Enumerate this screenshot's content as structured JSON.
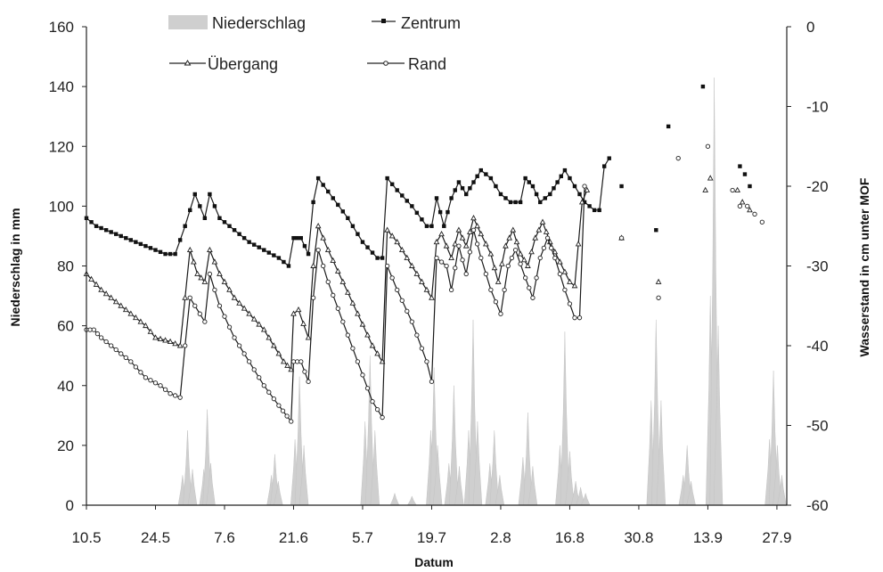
{
  "chart_data": {
    "type": "line",
    "xlabel": "Datum",
    "ylabel_left": "Niederschlag in mm",
    "ylabel_right": "Wasserstand in cm unter MOF",
    "x_range_days": [
      0,
      142
    ],
    "x_ticks": [
      {
        "day": 0,
        "label": "10.5"
      },
      {
        "day": 14,
        "label": "24.5"
      },
      {
        "day": 28,
        "label": "7.6"
      },
      {
        "day": 42,
        "label": "21.6"
      },
      {
        "day": 56,
        "label": "5.7"
      },
      {
        "day": 70,
        "label": "19.7"
      },
      {
        "day": 84,
        "label": "2.8"
      },
      {
        "day": 98,
        "label": "16.8"
      },
      {
        "day": 112,
        "label": "30.8"
      },
      {
        "day": 126,
        "label": "13.9"
      },
      {
        "day": 140,
        "label": "27.9"
      }
    ],
    "ylim_left": [
      0,
      160
    ],
    "yticks_left": [
      "0",
      "20",
      "40",
      "60",
      "80",
      "100",
      "120",
      "140",
      "160"
    ],
    "ylim_right": [
      -60,
      0
    ],
    "yticks_right": [
      "-60",
      "-50",
      "-40",
      "-30",
      "-20",
      "-10",
      "0"
    ],
    "legend": {
      "niederschlag": "Niederschlag",
      "zentrum": "Zentrum",
      "uebergang": "Übergang",
      "rand": "Rand"
    },
    "precipitation": [
      {
        "day": 19.5,
        "value": 10
      },
      {
        "day": 20.5,
        "value": 25
      },
      {
        "day": 21.5,
        "value": 12
      },
      {
        "day": 23.8,
        "value": 12
      },
      {
        "day": 24.5,
        "value": 32
      },
      {
        "day": 25.2,
        "value": 14
      },
      {
        "day": 37.5,
        "value": 10
      },
      {
        "day": 38.2,
        "value": 17
      },
      {
        "day": 38.9,
        "value": 8
      },
      {
        "day": 42.3,
        "value": 22
      },
      {
        "day": 43.2,
        "value": 43
      },
      {
        "day": 44.1,
        "value": 20
      },
      {
        "day": 56.5,
        "value": 28
      },
      {
        "day": 57.5,
        "value": 50
      },
      {
        "day": 58.5,
        "value": 25
      },
      {
        "day": 62.5,
        "value": 4
      },
      {
        "day": 66.0,
        "value": 3
      },
      {
        "day": 69.8,
        "value": 25
      },
      {
        "day": 70.5,
        "value": 46
      },
      {
        "day": 71.2,
        "value": 20
      },
      {
        "day": 73.5,
        "value": 14
      },
      {
        "day": 74.5,
        "value": 40
      },
      {
        "day": 75.6,
        "value": 13
      },
      {
        "day": 77.5,
        "value": 25
      },
      {
        "day": 78.4,
        "value": 62
      },
      {
        "day": 79.3,
        "value": 28
      },
      {
        "day": 81.8,
        "value": 14
      },
      {
        "day": 82.7,
        "value": 25
      },
      {
        "day": 83.8,
        "value": 10
      },
      {
        "day": 88.5,
        "value": 16
      },
      {
        "day": 89.5,
        "value": 31
      },
      {
        "day": 90.5,
        "value": 13
      },
      {
        "day": 96.0,
        "value": 20
      },
      {
        "day": 97.0,
        "value": 58
      },
      {
        "day": 98.0,
        "value": 18
      },
      {
        "day": 99.2,
        "value": 8
      },
      {
        "day": 100.2,
        "value": 6
      },
      {
        "day": 101.2,
        "value": 4
      },
      {
        "day": 114.5,
        "value": 35
      },
      {
        "day": 115.5,
        "value": 62
      },
      {
        "day": 116.5,
        "value": 35
      },
      {
        "day": 121.0,
        "value": 10
      },
      {
        "day": 121.8,
        "value": 20
      },
      {
        "day": 122.6,
        "value": 8
      },
      {
        "day": 126.5,
        "value": 70
      },
      {
        "day": 127.3,
        "value": 143
      },
      {
        "day": 128.1,
        "value": 60
      },
      {
        "day": 138.5,
        "value": 22
      },
      {
        "day": 139.3,
        "value": 45
      },
      {
        "day": 140.1,
        "value": 20
      },
      {
        "day": 141.0,
        "value": 10
      }
    ],
    "series": [
      {
        "name": "Zentrum",
        "segments": [
          [
            [
              0,
              -24
            ],
            [
              2,
              -25
            ],
            [
              4,
              -25.5
            ],
            [
              6,
              -26
            ],
            [
              8,
              -26.5
            ],
            [
              10,
              -27
            ],
            [
              12,
              -27.5
            ],
            [
              14,
              -28
            ],
            [
              16,
              -28.5
            ],
            [
              18,
              -28.5
            ],
            [
              20,
              -25
            ],
            [
              22,
              -21
            ],
            [
              24,
              -24
            ],
            [
              25,
              -21
            ],
            [
              27,
              -24
            ],
            [
              30,
              -25.5
            ],
            [
              33,
              -27
            ],
            [
              36,
              -28
            ],
            [
              39,
              -29
            ],
            [
              41,
              -30
            ],
            [
              42,
              -26.5
            ],
            [
              43.5,
              -26.5
            ],
            [
              45,
              -28.5
            ],
            [
              46,
              -22
            ],
            [
              47,
              -19
            ],
            [
              50,
              -21.5
            ],
            [
              53,
              -24
            ],
            [
              56,
              -27
            ],
            [
              59,
              -29
            ],
            [
              60,
              -29
            ],
            [
              61,
              -19
            ],
            [
              63,
              -20.5
            ],
            [
              66,
              -22.5
            ],
            [
              69,
              -25
            ],
            [
              70,
              -25
            ],
            [
              71,
              -21.5
            ],
            [
              72.5,
              -25
            ],
            [
              74,
              -21.5
            ],
            [
              75.5,
              -19.5
            ],
            [
              77,
              -21
            ],
            [
              78.5,
              -19.5
            ],
            [
              80,
              -18
            ],
            [
              82,
              -19
            ],
            [
              84,
              -21
            ],
            [
              86,
              -22
            ],
            [
              88,
              -22
            ],
            [
              89,
              -19
            ],
            [
              90.5,
              -20
            ],
            [
              92,
              -22
            ],
            [
              94,
              -21
            ],
            [
              95.5,
              -19.5
            ],
            [
              97,
              -18
            ],
            [
              99,
              -20
            ],
            [
              101,
              -22
            ],
            [
              103,
              -23
            ],
            [
              104,
              -23
            ],
            [
              105,
              -17.5
            ],
            [
              106,
              -16.5
            ]
          ]
        ],
        "isolated": [
          [
            108.5,
            -20
          ],
          [
            115.5,
            -25.5
          ],
          [
            118,
            -12.5
          ],
          [
            125,
            -7.5
          ],
          [
            132.5,
            -17.5
          ],
          [
            133.5,
            -18.5
          ],
          [
            134.5,
            -20
          ]
        ]
      },
      {
        "name": "Übergang",
        "segments": [
          [
            [
              0,
              -31
            ],
            [
              3,
              -33
            ],
            [
              6,
              -34.5
            ],
            [
              9,
              -36
            ],
            [
              12,
              -37.5
            ],
            [
              14,
              -39
            ],
            [
              17,
              -39.5
            ],
            [
              19,
              -40
            ],
            [
              20,
              -34
            ],
            [
              21,
              -28
            ],
            [
              22.5,
              -31
            ],
            [
              24,
              -32
            ],
            [
              25,
              -28
            ],
            [
              27,
              -31
            ],
            [
              30,
              -34
            ],
            [
              33,
              -36
            ],
            [
              36,
              -38
            ],
            [
              38,
              -40
            ],
            [
              40,
              -42
            ],
            [
              41.5,
              -43
            ],
            [
              42,
              -36
            ],
            [
              43,
              -35.5
            ],
            [
              45,
              -39
            ],
            [
              46,
              -30
            ],
            [
              47,
              -25
            ],
            [
              49,
              -28
            ],
            [
              52,
              -32
            ],
            [
              55,
              -36
            ],
            [
              58,
              -40
            ],
            [
              60,
              -42
            ],
            [
              61,
              -25.5
            ],
            [
              63,
              -27
            ],
            [
              65,
              -29
            ],
            [
              68,
              -32
            ],
            [
              70,
              -34
            ],
            [
              71,
              -27
            ],
            [
              72,
              -26
            ],
            [
              74,
              -29
            ],
            [
              75.5,
              -25.5
            ],
            [
              77,
              -27.5
            ],
            [
              78.5,
              -24
            ],
            [
              80,
              -26
            ],
            [
              82,
              -28.5
            ],
            [
              83.5,
              -32
            ],
            [
              85,
              -27.5
            ],
            [
              86.5,
              -25.5
            ],
            [
              88,
              -28.5
            ],
            [
              89.5,
              -30
            ],
            [
              91,
              -26.5
            ],
            [
              92.5,
              -24.5
            ],
            [
              94,
              -27
            ],
            [
              96,
              -29.5
            ],
            [
              98,
              -32
            ],
            [
              99,
              -32.5
            ],
            [
              100.5,
              -22
            ],
            [
              101.5,
              -20.5
            ]
          ]
        ],
        "isolated": [
          [
            108.5,
            -26.5
          ],
          [
            116,
            -32
          ],
          [
            125.5,
            -20.5
          ],
          [
            126.5,
            -19
          ],
          [
            132,
            -20.5
          ],
          [
            133,
            -22
          ],
          [
            134.5,
            -23
          ]
        ]
      },
      {
        "name": "Rand",
        "segments": [
          [
            [
              0,
              -38
            ],
            [
              1.5,
              -38
            ],
            [
              3,
              -39
            ],
            [
              6,
              -40.5
            ],
            [
              9,
              -42
            ],
            [
              12,
              -44
            ],
            [
              15,
              -45
            ],
            [
              17,
              -46
            ],
            [
              19,
              -46.5
            ],
            [
              20,
              -40
            ],
            [
              21,
              -34
            ],
            [
              23,
              -36
            ],
            [
              24,
              -37
            ],
            [
              25,
              -31
            ],
            [
              27,
              -35
            ],
            [
              30,
              -39
            ],
            [
              33,
              -42
            ],
            [
              36,
              -45
            ],
            [
              39,
              -47.5
            ],
            [
              41.5,
              -49.5
            ],
            [
              42,
              -42
            ],
            [
              43.5,
              -42
            ],
            [
              45,
              -44.5
            ],
            [
              46,
              -34
            ],
            [
              47,
              -28
            ],
            [
              49,
              -32
            ],
            [
              52,
              -37
            ],
            [
              55,
              -42
            ],
            [
              58,
              -47
            ],
            [
              60,
              -49
            ],
            [
              61,
              -30
            ],
            [
              63,
              -33
            ],
            [
              66,
              -37
            ],
            [
              69,
              -42
            ],
            [
              70,
              -44.5
            ],
            [
              71,
              -29
            ],
            [
              73,
              -30
            ],
            [
              74,
              -33
            ],
            [
              75.5,
              -27.5
            ],
            [
              77,
              -31
            ],
            [
              78.5,
              -25.5
            ],
            [
              80,
              -29
            ],
            [
              82,
              -33
            ],
            [
              84,
              -36
            ],
            [
              85.5,
              -30
            ],
            [
              87,
              -28
            ],
            [
              89,
              -31.5
            ],
            [
              90.5,
              -34
            ],
            [
              92,
              -29
            ],
            [
              93.5,
              -26.5
            ],
            [
              95,
              -29
            ],
            [
              97,
              -33
            ],
            [
              99,
              -36.5
            ],
            [
              100,
              -36.5
            ],
            [
              101,
              -20
            ]
          ]
        ],
        "isolated": [
          [
            108.5,
            -26.5
          ],
          [
            116,
            -34
          ],
          [
            120,
            -16.5
          ],
          [
            126,
            -15
          ],
          [
            131,
            -20.5
          ],
          [
            132.5,
            -22.5
          ],
          [
            134,
            -22.5
          ],
          [
            135.5,
            -23.5
          ],
          [
            137,
            -24.5
          ]
        ]
      }
    ]
  }
}
